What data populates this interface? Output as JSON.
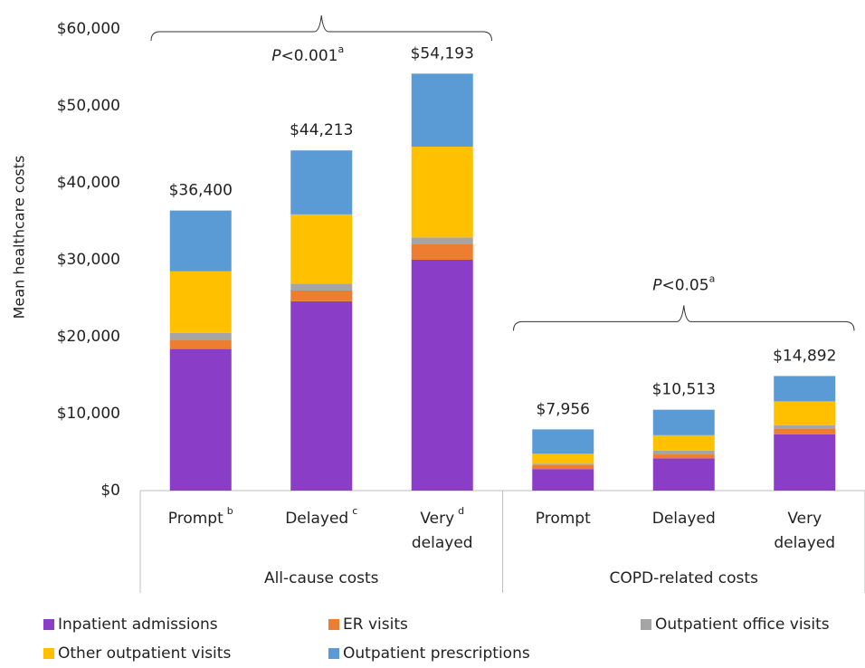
{
  "chart_data": {
    "type": "stacked_bar",
    "y_label": "Mean healthcare costs",
    "categories": [
      [
        "Prompt"
      ],
      [
        "Delayed"
      ],
      [
        "Very",
        "delayed"
      ],
      [
        "Prompt"
      ],
      [
        "Delayed"
      ],
      [
        "Very",
        "delayed"
      ]
    ],
    "category_notes": [
      "b",
      "c",
      "d",
      null,
      null,
      null
    ],
    "groups": [
      {
        "label": "All-cause costs",
        "annotation_italic": "P",
        "annotation": "<0.001",
        "note": "a",
        "size": 3
      },
      {
        "label": "COPD-related costs",
        "annotation_italic": "P",
        "annotation": "<0.05",
        "note": "a",
        "size": 3
      }
    ],
    "series": [
      {
        "name": "Inpatient admissions",
        "color": "#8a3dc6",
        "values": [
          18400,
          24600,
          30000,
          2800,
          4200,
          7300
        ]
      },
      {
        "name": "ER visits",
        "color": "#ed7d31",
        "values": [
          1200,
          1400,
          2000,
          500,
          500,
          700
        ]
      },
      {
        "name": "Outpatient office visits",
        "color": "#a5a5a5",
        "values": [
          900,
          900,
          900,
          200,
          500,
          500
        ]
      },
      {
        "name": "Other outpatient visits",
        "color": "#ffc000",
        "values": [
          8000,
          9000,
          11800,
          1300,
          2000,
          3100
        ]
      },
      {
        "name": "Outpatient prescriptions",
        "color": "#5b9bd5",
        "values": [
          7900,
          8313,
          9493,
          3156,
          3313,
          3292
        ]
      }
    ],
    "totals": {
      "values": [
        36400,
        44213,
        54193,
        7956,
        10513,
        14892
      ],
      "value_labels": [
        "$36,400",
        "$44,213",
        "$54,193",
        "$7,956",
        "$10,513",
        "$14,892"
      ]
    },
    "ylim": [
      0,
      60000
    ],
    "yticks": [
      {
        "value": 0,
        "label": "$0"
      },
      {
        "value": 10000,
        "label": "$10,000"
      },
      {
        "value": 20000,
        "label": "$20,000"
      },
      {
        "value": 30000,
        "label": "$30,000"
      },
      {
        "value": 40000,
        "label": "$40,000"
      },
      {
        "value": 50000,
        "label": "$50,000"
      },
      {
        "value": 60000,
        "label": "$60,000"
      }
    ],
    "grid": false
  }
}
